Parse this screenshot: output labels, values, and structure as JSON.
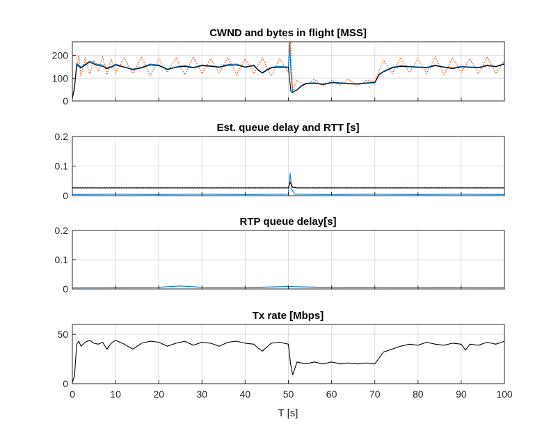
{
  "chart_data": [
    {
      "type": "line",
      "title": "CWND and bytes in flight [MSS]",
      "xlim": [
        0,
        100
      ],
      "ylim": [
        0,
        260
      ],
      "yticks": [
        0,
        100,
        200
      ],
      "grid": true,
      "colors": {
        "cwnd": "#0072BD",
        "bytes_in_flight": "#D95319",
        "extra": "#000000"
      },
      "series": [
        {
          "style": "solid",
          "color": "#0072BD",
          "x": [
            0,
            0.5,
            1,
            1.5,
            2,
            3,
            4,
            5,
            6,
            7,
            8,
            9,
            10,
            12,
            14,
            16,
            18,
            20,
            22,
            24,
            26,
            28,
            30,
            32,
            34,
            36,
            38,
            40,
            42,
            43,
            44,
            45,
            46,
            48,
            50,
            50.3,
            50.6,
            51,
            52,
            53,
            54,
            56,
            58,
            60,
            62,
            64,
            66,
            68,
            70,
            71,
            72,
            74,
            76,
            78,
            80,
            82,
            84,
            86,
            88,
            90,
            92,
            94,
            96,
            98,
            100
          ],
          "y": [
            15,
            60,
            165,
            158,
            148,
            162,
            175,
            168,
            160,
            158,
            145,
            152,
            162,
            150,
            140,
            148,
            162,
            158,
            140,
            150,
            155,
            148,
            158,
            155,
            150,
            160,
            162,
            150,
            158,
            138,
            125,
            138,
            148,
            152,
            150,
            255,
            120,
            38,
            50,
            68,
            78,
            80,
            75,
            82,
            80,
            78,
            76,
            80,
            82,
            118,
            130,
            148,
            155,
            152,
            150,
            148,
            158,
            150,
            145,
            152,
            150,
            148,
            158,
            152,
            165
          ]
        },
        {
          "style": "dotted",
          "color": "#D95319",
          "x": [
            0,
            1,
            1.5,
            2,
            3,
            4,
            5,
            6,
            7,
            8,
            9,
            10,
            12,
            14,
            16,
            18,
            20,
            22,
            24,
            26,
            28,
            30,
            32,
            34,
            36,
            38,
            40,
            42,
            44,
            46,
            48,
            50,
            50.5,
            51,
            52,
            54,
            56,
            58,
            60,
            62,
            64,
            66,
            68,
            70,
            72,
            74,
            76,
            78,
            80,
            82,
            84,
            86,
            88,
            90,
            92,
            94,
            96,
            98,
            100
          ],
          "y": [
            10,
            140,
            200,
            110,
            190,
            120,
            180,
            130,
            195,
            115,
            185,
            125,
            190,
            120,
            195,
            110,
            185,
            125,
            190,
            115,
            195,
            120,
            185,
            125,
            190,
            115,
            185,
            120,
            190,
            110,
            185,
            125,
            260,
            45,
            90,
            70,
            95,
            65,
            90,
            70,
            95,
            65,
            90,
            85,
            180,
            120,
            190,
            125,
            185,
            120,
            195,
            115,
            190,
            125,
            185,
            120,
            195,
            120,
            180
          ]
        },
        {
          "style": "solid",
          "color": "#000000",
          "x": [
            0,
            0.5,
            1,
            1.5,
            2,
            3,
            4,
            5,
            6,
            7,
            8,
            9,
            10,
            12,
            14,
            16,
            18,
            20,
            22,
            24,
            26,
            28,
            30,
            32,
            34,
            36,
            38,
            40,
            42,
            43,
            44,
            45,
            46,
            48,
            50,
            50.6,
            51,
            52,
            53,
            54,
            56,
            58,
            60,
            62,
            64,
            66,
            68,
            70,
            71,
            72,
            74,
            76,
            78,
            80,
            82,
            84,
            86,
            88,
            90,
            92,
            94,
            96,
            98,
            100
          ],
          "y": [
            12,
            55,
            160,
            152,
            145,
            158,
            170,
            162,
            156,
            152,
            142,
            148,
            158,
            148,
            138,
            145,
            158,
            155,
            138,
            148,
            152,
            145,
            155,
            152,
            148,
            156,
            158,
            148,
            155,
            135,
            122,
            135,
            145,
            148,
            148,
            40,
            38,
            48,
            65,
            75,
            78,
            72,
            80,
            78,
            75,
            74,
            78,
            80,
            115,
            128,
            145,
            152,
            150,
            148,
            145,
            155,
            148,
            142,
            150,
            148,
            145,
            155,
            150,
            162
          ]
        }
      ]
    },
    {
      "type": "line",
      "title": "Est. queue delay and RTT [s]",
      "xlim": [
        0,
        100
      ],
      "ylim": [
        0,
        0.2
      ],
      "yticks": [
        0,
        0.1,
        0.2
      ],
      "grid": true,
      "series": [
        {
          "style": "solid",
          "color": "#0072BD",
          "x": [
            0,
            10,
            20,
            30,
            40,
            50,
            50.4,
            50.8,
            51.5,
            60,
            70,
            80,
            90,
            100
          ],
          "y": [
            0.004,
            0.005,
            0.004,
            0.005,
            0.004,
            0.005,
            0.075,
            0.02,
            0.005,
            0.004,
            0.005,
            0.004,
            0.005,
            0.004
          ]
        },
        {
          "style": "dotted",
          "color": "#D95319",
          "x": [
            0,
            10,
            20,
            30,
            40,
            50,
            50.4,
            51,
            52,
            60,
            70,
            80,
            90,
            100
          ],
          "y": [
            0.028,
            0.028,
            0.028,
            0.028,
            0.028,
            0.028,
            0.05,
            0.03,
            0.028,
            0.028,
            0.028,
            0.028,
            0.028,
            0.028
          ]
        },
        {
          "style": "solid",
          "color": "#000000",
          "x": [
            0,
            10,
            20,
            30,
            40,
            50,
            50.4,
            51,
            52,
            60,
            70,
            80,
            90,
            100
          ],
          "y": [
            0.026,
            0.026,
            0.026,
            0.026,
            0.026,
            0.026,
            0.045,
            0.028,
            0.026,
            0.026,
            0.026,
            0.026,
            0.026,
            0.026
          ]
        }
      ]
    },
    {
      "type": "line",
      "title": "RTP queue delay[s]",
      "xlim": [
        0,
        100
      ],
      "ylim": [
        0,
        0.2
      ],
      "yticks": [
        0,
        0.1,
        0.2
      ],
      "grid": true,
      "series": [
        {
          "style": "solid",
          "color": "#0072BD",
          "x": [
            0,
            10,
            20,
            25,
            30,
            40,
            50,
            60,
            70,
            80,
            90,
            100
          ],
          "y": [
            0.004,
            0.005,
            0.006,
            0.01,
            0.006,
            0.005,
            0.008,
            0.005,
            0.006,
            0.005,
            0.006,
            0.005
          ]
        }
      ]
    },
    {
      "type": "line",
      "title": "Tx rate [Mbps]",
      "xlabel": "T [s]",
      "xlim": [
        0,
        100
      ],
      "ylim": [
        0,
        60
      ],
      "yticks": [
        0,
        50
      ],
      "xticks": [
        0,
        10,
        20,
        30,
        40,
        50,
        60,
        70,
        80,
        90,
        100
      ],
      "grid": true,
      "series": [
        {
          "style": "solid",
          "color": "#000000",
          "x": [
            0,
            0.5,
            1,
            1.5,
            2,
            3,
            4,
            5,
            6,
            7,
            8,
            9,
            10,
            12,
            14,
            16,
            18,
            20,
            22,
            24,
            26,
            28,
            30,
            32,
            34,
            36,
            38,
            40,
            42,
            43,
            44,
            45,
            46,
            48,
            50,
            50.5,
            51,
            52,
            54,
            56,
            58,
            60,
            62,
            64,
            66,
            68,
            70,
            71,
            72,
            74,
            76,
            78,
            80,
            82,
            84,
            86,
            88,
            90,
            91,
            92,
            94,
            96,
            98,
            100
          ],
          "y": [
            1,
            8,
            40,
            43,
            38,
            42,
            44,
            41,
            40,
            42,
            35,
            41,
            44,
            40,
            35,
            41,
            43,
            42,
            38,
            41,
            43,
            39,
            42,
            41,
            38,
            42,
            43,
            41,
            40,
            36,
            33,
            37,
            41,
            42,
            40,
            20,
            9,
            22,
            20,
            22,
            20,
            22,
            20,
            21,
            20,
            21,
            20,
            26,
            32,
            35,
            38,
            40,
            39,
            42,
            40,
            39,
            41,
            40,
            34,
            40,
            39,
            42,
            40,
            43
          ]
        }
      ]
    }
  ]
}
